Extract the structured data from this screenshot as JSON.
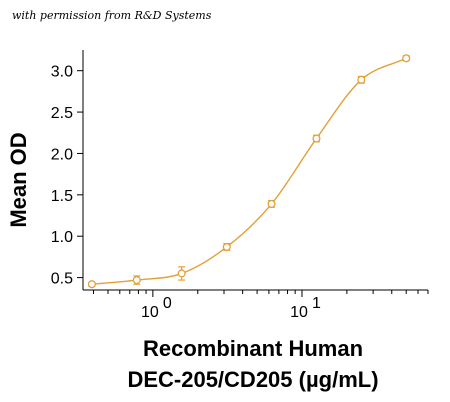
{
  "credit": "with permission from R&D Systems",
  "chart_data": {
    "type": "line",
    "title": "",
    "xlabel_line1": "Recombinant Human",
    "xlabel_line2": "DEC-205/CD205 (µg/mL)",
    "ylabel": "Mean OD",
    "x_scale": "log",
    "xlim": [
      0.34,
      70
    ],
    "ylim": [
      0.35,
      3.25
    ],
    "y_ticks": [
      0.5,
      1.0,
      1.5,
      2.0,
      2.5,
      3.0
    ],
    "y_tick_labels": [
      "0.5",
      "1.0",
      "1.5",
      "2.0",
      "2.5",
      "3.0"
    ],
    "x_ticks": [
      1,
      10
    ],
    "x_tick_labels": [
      {
        "base": "10",
        "exp": "0"
      },
      {
        "base": "10",
        "exp": "1"
      }
    ],
    "grid": false,
    "color": "#E3A03A",
    "series": [
      {
        "x": [
          0.39,
          0.78,
          1.56,
          3.13,
          6.25,
          12.5,
          25,
          50
        ],
        "y": [
          0.42,
          0.47,
          0.55,
          0.87,
          1.39,
          2.18,
          2.89,
          3.15
        ],
        "err": [
          0.02,
          0.05,
          0.08,
          0.04,
          0.04,
          0.04,
          0.04,
          0.03
        ]
      }
    ]
  }
}
